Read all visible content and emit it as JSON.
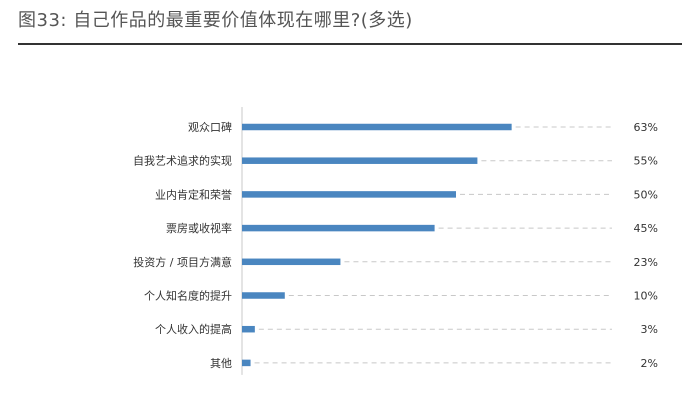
{
  "title": "图33: 自己作品的最重要价值体现在哪里?(多选)",
  "colors": {
    "bar": "#4a86c0",
    "guide": "#c8c8c8",
    "axis": "#c8c8c8",
    "rule": "#333333"
  },
  "chart_data": {
    "type": "bar",
    "orientation": "horizontal",
    "title": "图33: 自己作品的最重要价值体现在哪里?(多选)",
    "categories": [
      "观众口碑",
      "自我艺术追求的实现",
      "业内肯定和荣誉",
      "票房或收视率",
      "投资方 / 项目方满意",
      "个人知名度的提升",
      "个人收入的提高",
      "其他"
    ],
    "values": [
      63,
      55,
      50,
      45,
      23,
      10,
      3,
      2
    ],
    "value_labels": [
      "63%",
      "55%",
      "50%",
      "45%",
      "23%",
      "10%",
      "3%",
      "2%"
    ],
    "unit": "%",
    "xlim": [
      0,
      100
    ],
    "grid": false,
    "legend": "none"
  }
}
